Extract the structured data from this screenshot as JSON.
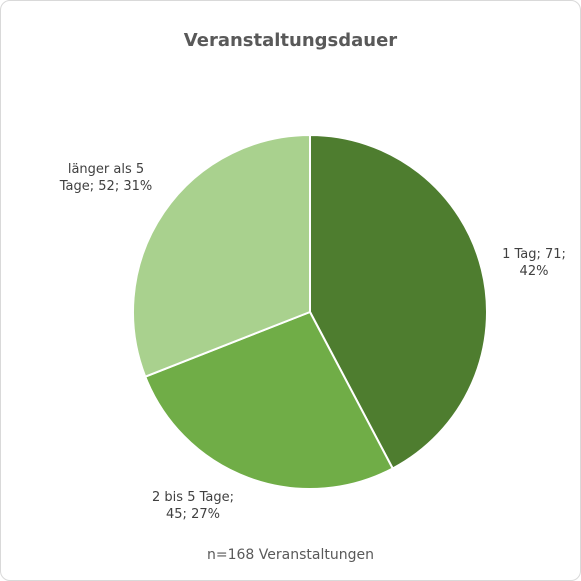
{
  "chart_data": {
    "type": "pie",
    "title": "Veranstaltungsdauer",
    "subtitle": "n=168 Veranstaltungen",
    "values": [
      71,
      45,
      52
    ],
    "value_labels": [
      "1 Tag; 71; 42%",
      "2 bis 5 Tage; 45; 27%",
      "länger als 5 Tage; 52; 31%"
    ],
    "colors": [
      "#4e7d2f",
      "#70ad47",
      "#a9d18e"
    ]
  }
}
